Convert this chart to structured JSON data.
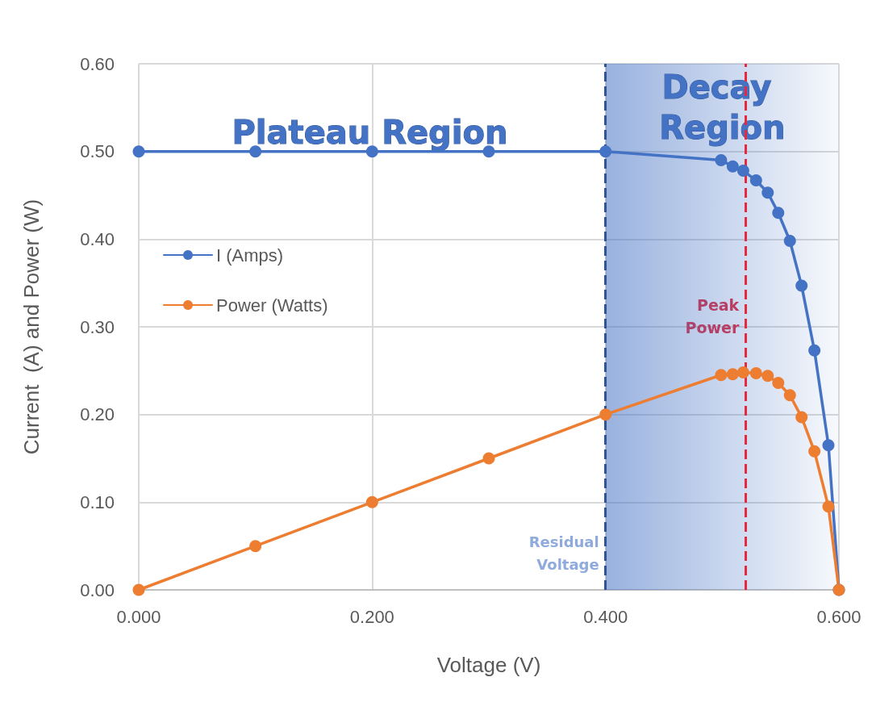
{
  "chart_data": {
    "type": "line",
    "xlabel": "Voltage (V)",
    "ylabel": "Current  (A) and Power (W)",
    "xlim": [
      0,
      0.6
    ],
    "xticks": [
      {
        "value": 0,
        "label": "0.000"
      },
      {
        "value": 0.2,
        "label": "0.200"
      },
      {
        "value": 0.4,
        "label": "0.400"
      },
      {
        "value": 0.6,
        "label": "0.600"
      }
    ],
    "ylim": [
      0,
      0.6
    ],
    "yticks": [
      {
        "value": 0,
        "label": "0.00"
      },
      {
        "value": 0.1,
        "label": "0.10"
      },
      {
        "value": 0.2,
        "label": "0.20"
      },
      {
        "value": 0.3,
        "label": "0.30"
      },
      {
        "value": 0.4,
        "label": "0.40"
      },
      {
        "value": 0.5,
        "label": "0.50"
      },
      {
        "value": 0.6,
        "label": "0.60"
      }
    ],
    "grid": true,
    "legend": "left",
    "marker": "circle",
    "line_style": "solid",
    "series": [
      {
        "name": "I (Amps)",
        "color": "#4472c4",
        "x": [
          0,
          0.1,
          0.2,
          0.3,
          0.4,
          0.499,
          0.509,
          0.518,
          0.529,
          0.539,
          0.548,
          0.558,
          0.568,
          0.579,
          0.591,
          0.6
        ],
        "values": [
          0.5,
          0.5,
          0.5,
          0.5,
          0.5,
          0.49,
          0.483,
          0.478,
          0.467,
          0.453,
          0.43,
          0.398,
          0.347,
          0.273,
          0.165,
          0
        ]
      },
      {
        "name": "Power (Watts)",
        "color": "#ed7d31",
        "x": [
          0,
          0.1,
          0.2,
          0.3,
          0.4,
          0.499,
          0.509,
          0.518,
          0.529,
          0.539,
          0.548,
          0.558,
          0.568,
          0.579,
          0.591,
          0.6
        ],
        "values": [
          0,
          0.05,
          0.1,
          0.15,
          0.2,
          0.245,
          0.246,
          0.248,
          0.247,
          0.244,
          0.236,
          0.222,
          0.197,
          0.158,
          0.095,
          0
        ]
      }
    ],
    "ref_lines": [
      {
        "axis": "x",
        "value": 0.4,
        "label": "Residual Voltage",
        "color": "#2f5597",
        "line_style": "dashed"
      },
      {
        "axis": "x",
        "value": 0.52,
        "label": "Peak Power",
        "color": "#e8283c",
        "line_style": "dashed"
      }
    ],
    "bands": [
      {
        "axis": "x",
        "from": 0.4,
        "to": 0.6,
        "label": "Decay Region",
        "color": "#4472c4"
      }
    ],
    "annotations": [
      "Plateau Region"
    ]
  }
}
